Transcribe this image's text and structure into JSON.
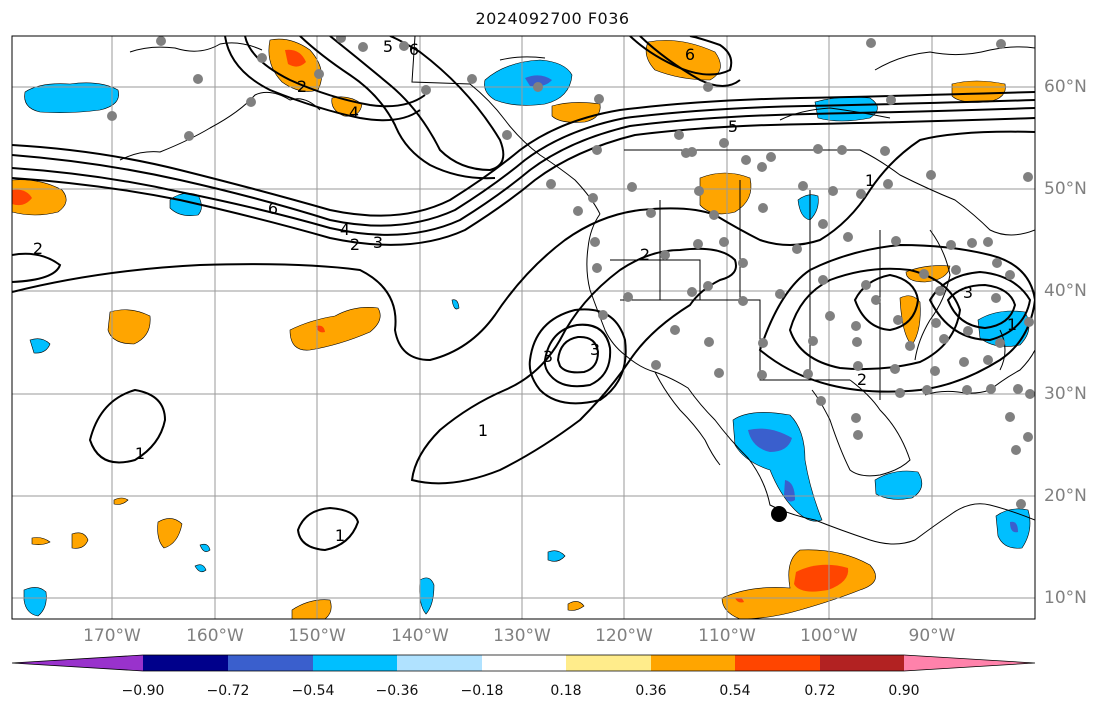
{
  "title": "2024092700 F036",
  "lon_labels": [
    "170°W",
    "160°W",
    "150°W",
    "140°W",
    "130°W",
    "120°W",
    "110°W",
    "100°W",
    "90°W"
  ],
  "lat_labels": [
    "60°N",
    "50°N",
    "40°N",
    "30°N",
    "20°N",
    "10°N"
  ],
  "contour_labels": [
    "6",
    "5",
    "4",
    "4",
    "3",
    "2",
    "6",
    "1",
    "2",
    "3",
    "2",
    "1",
    "1",
    "2",
    "3",
    "1",
    "2",
    "3",
    "6",
    "5",
    "1"
  ],
  "colorbar": {
    "tick_labels": [
      "−0.90",
      "−0.72",
      "−0.54",
      "−0.36",
      "−0.18",
      "0.18",
      "0.36",
      "0.54",
      "0.72",
      "0.90"
    ],
    "colors": {
      "below": "#9932cc",
      "bin_neg_090_072": "#00008b",
      "bin_neg_072_054": "#3a5fcd",
      "bin_neg_054_036": "#00bfff",
      "bin_neg_036_018": "#b0e2ff",
      "bin_neg_018_018": "#ffffff",
      "bin_018_036": "#ffec8b",
      "bin_036_054": "#ffa500",
      "bin_054_072": "#ff4500",
      "bin_072_090": "#b22222",
      "above": "#ff82ab"
    }
  }
}
